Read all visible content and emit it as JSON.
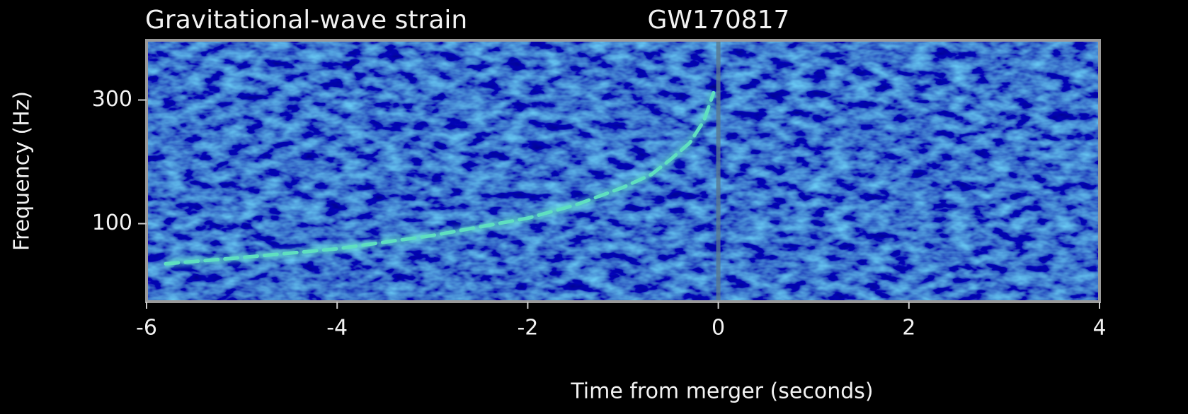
{
  "chart_data": {
    "type": "line",
    "title": "Gravitational-wave strain",
    "subtitle": "GW170817",
    "xlabel": "Time from merger (seconds)",
    "ylabel": "Frequency (Hz)",
    "x": [
      -5.8,
      -5,
      -4,
      -3,
      -2,
      -1.5,
      -1,
      -0.7,
      -0.5,
      -0.3,
      -0.15,
      -0.05
    ],
    "values": [
      70,
      74,
      80,
      90,
      105,
      118,
      138,
      155,
      177,
      205,
      250,
      320
    ],
    "color": "#5fe0c0",
    "xlim": [
      -6,
      4
    ],
    "xticks": [
      -6,
      -4,
      -2,
      0,
      2,
      4
    ],
    "ylim": [
      50,
      510
    ],
    "yticks": [
      100,
      300
    ],
    "log_y": true
  }
}
